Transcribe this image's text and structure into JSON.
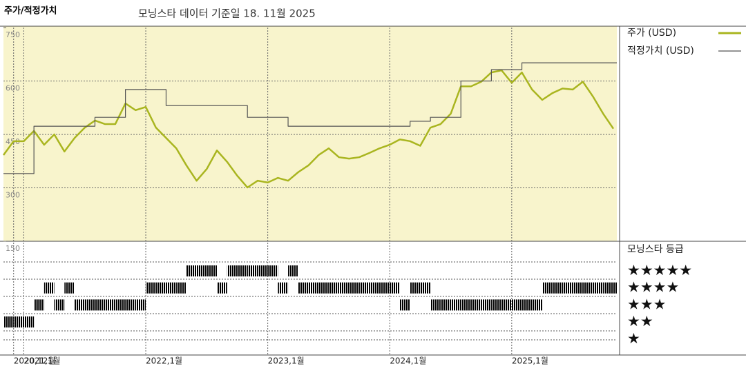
{
  "chart_data": {
    "type": "line",
    "title": "주가/적정가치",
    "subtitle": "모닝스타 데이터 기준일 18. 11월 2025",
    "x": [
      "2020-11",
      "2020-12",
      "2021-01",
      "2021-02",
      "2021-03",
      "2021-04",
      "2021-05",
      "2021-06",
      "2021-07",
      "2021-08",
      "2021-09",
      "2021-10",
      "2021-11",
      "2021-12",
      "2022-01",
      "2022-02",
      "2022-03",
      "2022-04",
      "2022-05",
      "2022-06",
      "2022-07",
      "2022-08",
      "2022-09",
      "2022-10",
      "2022-11",
      "2022-12",
      "2023-01",
      "2023-02",
      "2023-03",
      "2023-04",
      "2023-05",
      "2023-06",
      "2023-07",
      "2023-08",
      "2023-09",
      "2023-10",
      "2023-11",
      "2023-12",
      "2024-01",
      "2024-02",
      "2024-03",
      "2024-04",
      "2024-05",
      "2024-06",
      "2024-07",
      "2024-08",
      "2024-09",
      "2024-10",
      "2024-11",
      "2024-12",
      "2025-01",
      "2025-02",
      "2025-03",
      "2025-04",
      "2025-05",
      "2025-06",
      "2025-07",
      "2025-08",
      "2025-09",
      "2025-10",
      "2025-11"
    ],
    "xlim": [
      "2020-11",
      "2025-11"
    ],
    "xticks": [
      {
        "value": "2020-12",
        "label": "2020,12월"
      },
      {
        "value": "2021-01",
        "label": "2021,1월"
      },
      {
        "value": "2022-01",
        "label": "2022,1월"
      },
      {
        "value": "2023-01",
        "label": "2023,1월"
      },
      {
        "value": "2024-01",
        "label": "2024,1월"
      },
      {
        "value": "2025-01",
        "label": "2025,1월"
      }
    ],
    "ylim": [
      150,
      750
    ],
    "yticks": [
      150,
      300,
      450,
      600,
      750
    ],
    "grid": true,
    "series": [
      {
        "name": "주가 (USD)",
        "color": "#a9b51f",
        "values": [
          392,
          431,
          431,
          460,
          421,
          450,
          402,
          440,
          469,
          489,
          479,
          479,
          537,
          518,
          527,
          469,
          440,
          411,
          363,
          320,
          353,
          405,
          373,
          334,
          301,
          320,
          315,
          328,
          320,
          344,
          363,
          392,
          411,
          386,
          382,
          386,
          398,
          411,
          421,
          436,
          431,
          418,
          469,
          479,
          508,
          585,
          585,
          598,
          624,
          630,
          595,
          624,
          576,
          547,
          566,
          579,
          576,
          598,
          556,
          508,
          466
        ]
      },
      {
        "name": "적정가치 (USD)",
        "color": "#555555",
        "step": true,
        "values": [
          340,
          340,
          340,
          473,
          473,
          473,
          473,
          473,
          473,
          498,
          498,
          498,
          576,
          576,
          576,
          576,
          531,
          531,
          531,
          531,
          531,
          531,
          531,
          531,
          498,
          498,
          498,
          498,
          473,
          473,
          473,
          473,
          473,
          473,
          473,
          473,
          473,
          473,
          473,
          473,
          487,
          487,
          498,
          498,
          498,
          600,
          600,
          600,
          632,
          632,
          632,
          651,
          651,
          651,
          651,
          651,
          651,
          651,
          651,
          651,
          651
        ]
      }
    ],
    "ratings": {
      "title": "모닝스타 등급",
      "levels": [
        {
          "value": 5,
          "label": "★★★★★",
          "color": "#3d8a6e"
        },
        {
          "value": 4,
          "label": "★★★★",
          "color": "#333333"
        },
        {
          "value": 3,
          "label": "★★★",
          "color": "#333333"
        },
        {
          "value": 2,
          "label": "★★",
          "color": "#333333"
        },
        {
          "value": 1,
          "label": "★",
          "color": "#333333"
        }
      ],
      "values": [
        2,
        2,
        2,
        3,
        4,
        3,
        4,
        3,
        3,
        3,
        3,
        3,
        3,
        3,
        4,
        4,
        4,
        4,
        5,
        5,
        5,
        4,
        5,
        5,
        5,
        5,
        5,
        4,
        5,
        4,
        4,
        4,
        4,
        4,
        4,
        4,
        4,
        4,
        4,
        3,
        4,
        4,
        3,
        3,
        3,
        3,
        3,
        3,
        3,
        3,
        3,
        3,
        3,
        4,
        4,
        4,
        4,
        4,
        4,
        4,
        4
      ]
    }
  }
}
